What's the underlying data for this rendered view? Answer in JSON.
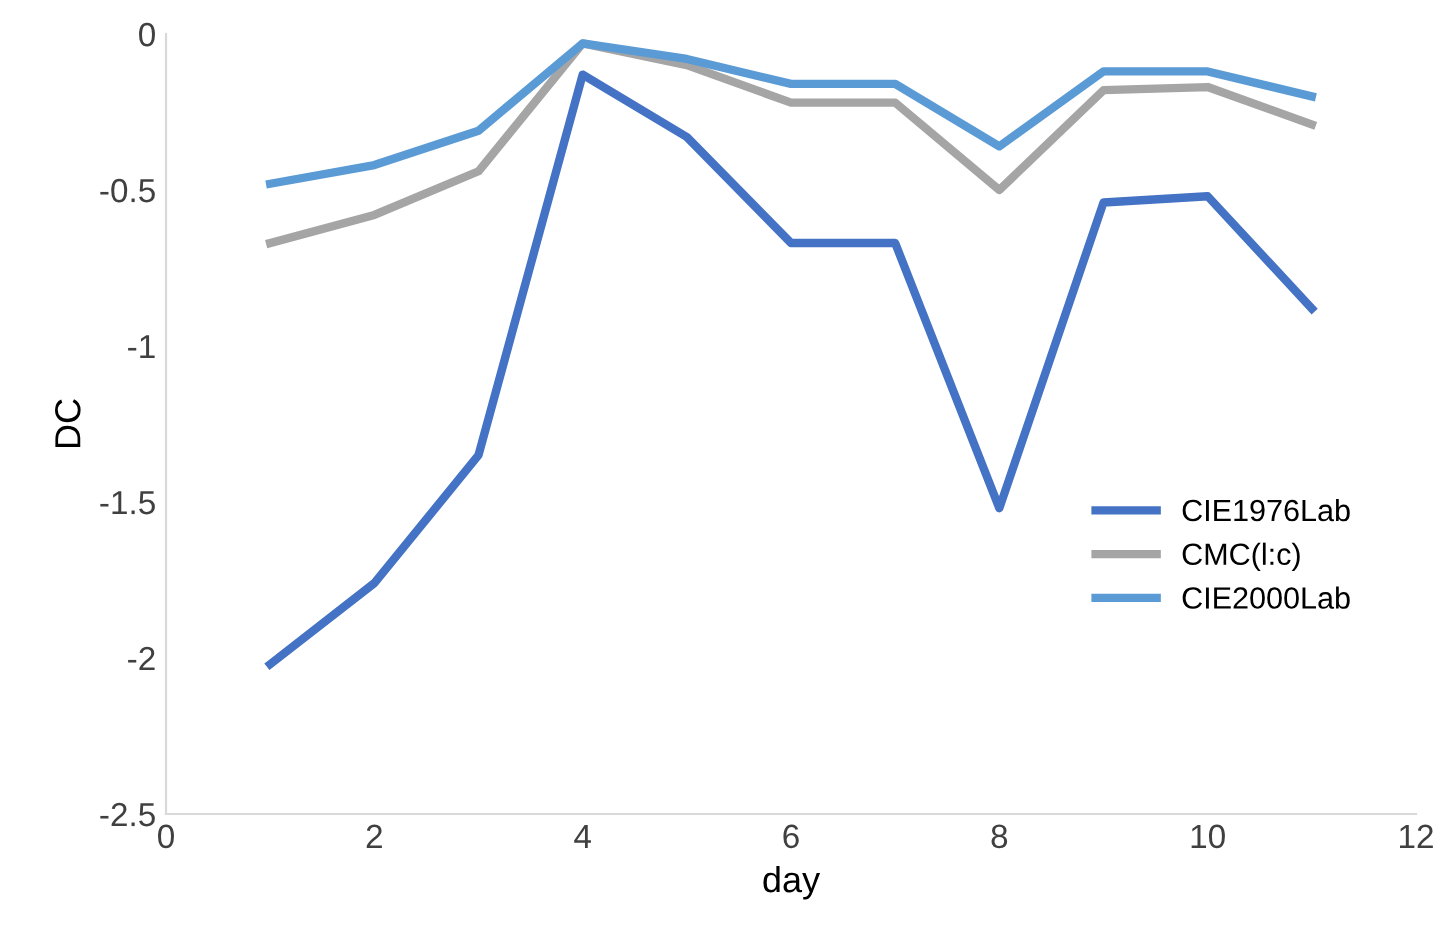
{
  "chart_data": {
    "type": "line",
    "xlabel": "day",
    "ylabel": "DC",
    "x": [
      1,
      2,
      3,
      4,
      5,
      6,
      7,
      8,
      9,
      10,
      11
    ],
    "series": [
      {
        "name": "CIE1976Lab",
        "color": "#4472c4",
        "values": [
          -2.02,
          -1.76,
          -1.35,
          -0.13,
          -0.33,
          -0.67,
          -0.67,
          -1.52,
          -0.54,
          -0.52,
          -0.88
        ]
      },
      {
        "name": "CMC(l:c)",
        "color": "#a5a5a5",
        "values": [
          -0.67,
          -0.58,
          -0.44,
          -0.03,
          -0.1,
          -0.22,
          -0.22,
          -0.5,
          -0.18,
          -0.17,
          -0.29
        ]
      },
      {
        "name": "CIE2000Lab",
        "color": "#5b9bd5",
        "values": [
          -0.48,
          -0.42,
          -0.31,
          -0.03,
          -0.08,
          -0.16,
          -0.16,
          -0.36,
          -0.12,
          -0.12,
          -0.2
        ]
      }
    ],
    "xlim": [
      0,
      12
    ],
    "xticks": [
      0,
      2,
      4,
      6,
      8,
      10,
      12
    ],
    "ylim": [
      -2.5,
      0
    ],
    "yticks": [
      -2.5,
      -2,
      -1.5,
      -1,
      -0.5,
      0
    ],
    "grid": false,
    "legend": "bottom right",
    "marker": "none",
    "line_style": "solid"
  }
}
